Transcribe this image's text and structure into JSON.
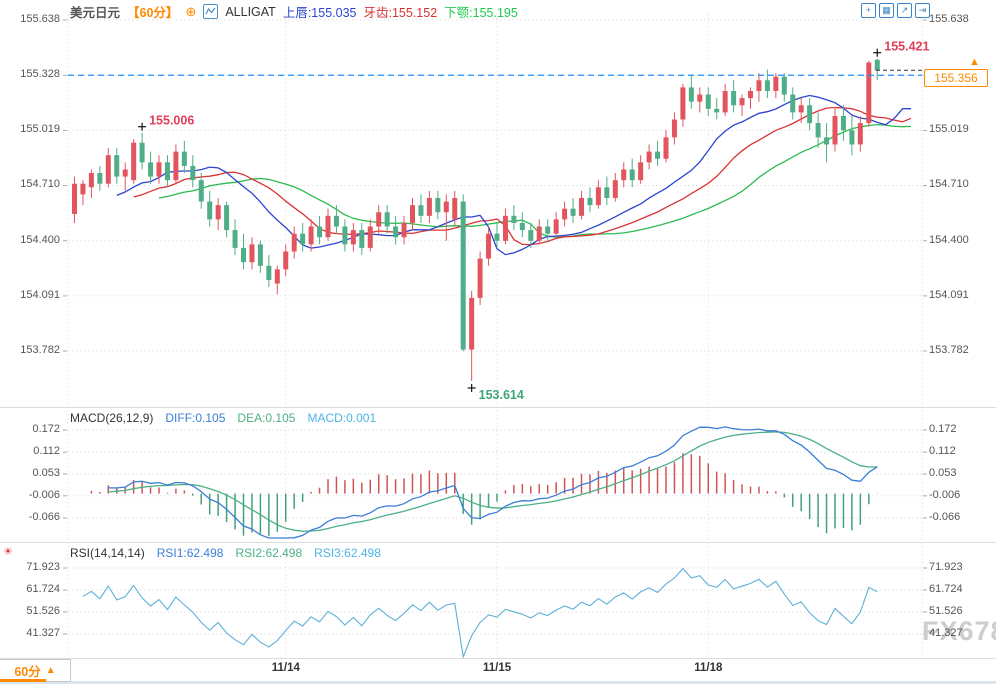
{
  "header": {
    "symbol": "美元日元",
    "timeframe": "【60分】",
    "plus_icon_glyph": "⊕",
    "indicator_name": "ALLIGAT",
    "lips_label": "上唇:155.035",
    "teeth_label": "牙齿:155.152",
    "jaw_label": "下颚:155.195",
    "toolbar_icons": [
      {
        "name": "pan-icon",
        "glyph": "+"
      },
      {
        "name": "grid-scale-icon",
        "glyph": "▦"
      },
      {
        "name": "trend-scale-icon",
        "glyph": "↗"
      },
      {
        "name": "exit-view-icon",
        "glyph": "⇥"
      }
    ]
  },
  "price_axis": {
    "ticks": [
      "155.638",
      "155.328",
      "155.019",
      "154.710",
      "154.400",
      "154.091",
      "153.782"
    ]
  },
  "macd_panel": {
    "title": "MACD(26,12,9)",
    "diff_label": "DIFF:0.105",
    "dea_label": "DEA:0.105",
    "macd_label": "MACD:0.001",
    "ticks": [
      "0.172",
      "0.112",
      "0.053",
      "-0.006",
      "-0.066"
    ]
  },
  "rsi_panel": {
    "title": "RSI(14,14,14)",
    "rsi1_label": "RSI1:62.498",
    "rsi2_label": "RSI2:62.498",
    "rsi3_label": "RSI3:62.498",
    "ticks": [
      "71.923",
      "61.724",
      "51.526",
      "41.327"
    ]
  },
  "x_axis": {
    "labels": [
      "11/14",
      "11/15",
      "11/18"
    ]
  },
  "footer": {
    "timeframe_label": "60分",
    "dropdown_glyph": "▲"
  },
  "current_price_tag": {
    "value": "155.356",
    "arrow_glyph": "▲"
  },
  "watermark": "FX678",
  "colors": {
    "candle_up": "#e2555e",
    "candle_down": "#4fae87",
    "alligator_lips": "#2c44cf",
    "alligator_teeth": "#da3333",
    "alligator_jaw": "#2cba50",
    "macd_diff": "#3b7ed8",
    "macd_dea": "#4cb084",
    "hist_up": "#cf5454",
    "hist_down": "#44a07a",
    "rsi_line": "#5fb0d8",
    "accent_orange": "#ff8a00",
    "dashed_blue": "#1f8fff",
    "marker_up": "#e0405a",
    "marker_down": "#3da678",
    "grid": "#e2e2e2"
  },
  "chart_data": {
    "type": "candlestick",
    "symbol": "USD/JPY",
    "timeframe_minutes": 60,
    "price_ticks": [
      155.638,
      155.328,
      155.019,
      154.71,
      154.4,
      154.091,
      153.782
    ],
    "macd_ticks": [
      0.172,
      0.112,
      0.053,
      -0.006,
      -0.066
    ],
    "rsi_ticks": [
      71.923,
      61.724,
      51.526,
      41.327
    ],
    "date_label_indices": [
      25,
      50,
      75
    ],
    "dashed_level": 155.328,
    "current_price": 155.356,
    "session_high": 155.421,
    "swing_high": 155.006,
    "session_low": 153.614,
    "candles": [
      [
        154.55,
        154.76,
        154.5,
        154.72
      ],
      [
        154.66,
        154.74,
        154.6,
        154.72
      ],
      [
        154.7,
        154.8,
        154.64,
        154.78
      ],
      [
        154.78,
        154.82,
        154.68,
        154.72
      ],
      [
        154.72,
        154.92,
        154.7,
        154.88
      ],
      [
        154.88,
        154.92,
        154.72,
        154.76
      ],
      [
        154.76,
        154.84,
        154.68,
        154.8
      ],
      [
        154.74,
        154.97,
        154.72,
        154.95
      ],
      [
        154.95,
        155.006,
        154.8,
        154.84
      ],
      [
        154.84,
        154.9,
        154.72,
        154.76
      ],
      [
        154.76,
        154.88,
        154.72,
        154.84
      ],
      [
        154.84,
        154.88,
        154.7,
        154.74
      ],
      [
        154.74,
        154.94,
        154.72,
        154.9
      ],
      [
        154.9,
        154.96,
        154.78,
        154.82
      ],
      [
        154.82,
        154.88,
        154.7,
        154.74
      ],
      [
        154.74,
        154.78,
        154.58,
        154.62
      ],
      [
        154.62,
        154.68,
        154.48,
        154.52
      ],
      [
        154.52,
        154.64,
        154.46,
        154.6
      ],
      [
        154.6,
        154.62,
        154.42,
        154.46
      ],
      [
        154.46,
        154.52,
        154.32,
        154.36
      ],
      [
        154.36,
        154.44,
        154.24,
        154.28
      ],
      [
        154.28,
        154.42,
        154.24,
        154.38
      ],
      [
        154.38,
        154.4,
        154.22,
        154.26
      ],
      [
        154.26,
        154.32,
        154.14,
        154.18
      ],
      [
        154.16,
        154.26,
        154.1,
        154.24
      ],
      [
        154.24,
        154.38,
        154.2,
        154.34
      ],
      [
        154.34,
        154.48,
        154.3,
        154.44
      ],
      [
        154.44,
        154.5,
        154.34,
        154.38
      ],
      [
        154.38,
        154.52,
        154.34,
        154.48
      ],
      [
        154.48,
        154.54,
        154.38,
        154.42
      ],
      [
        154.42,
        154.58,
        154.4,
        154.54
      ],
      [
        154.54,
        154.6,
        154.44,
        154.48
      ],
      [
        154.48,
        154.52,
        154.34,
        154.38
      ],
      [
        154.38,
        154.5,
        154.34,
        154.46
      ],
      [
        154.46,
        154.5,
        154.32,
        154.36
      ],
      [
        154.36,
        154.52,
        154.34,
        154.48
      ],
      [
        154.48,
        154.6,
        154.44,
        154.56
      ],
      [
        154.56,
        154.6,
        154.44,
        154.48
      ],
      [
        154.48,
        154.54,
        154.38,
        154.42
      ],
      [
        154.42,
        154.54,
        154.38,
        154.5
      ],
      [
        154.5,
        154.64,
        154.46,
        154.6
      ],
      [
        154.6,
        154.66,
        154.5,
        154.54
      ],
      [
        154.54,
        154.68,
        154.5,
        154.64
      ],
      [
        154.64,
        154.68,
        154.52,
        154.56
      ],
      [
        154.56,
        154.66,
        154.4,
        154.62
      ],
      [
        154.52,
        154.68,
        154.48,
        154.64
      ],
      [
        154.62,
        154.66,
        153.78,
        153.79
      ],
      [
        153.79,
        154.12,
        153.614,
        154.08
      ],
      [
        154.08,
        154.34,
        154.04,
        154.3
      ],
      [
        154.3,
        154.48,
        154.26,
        154.44
      ],
      [
        154.44,
        154.5,
        154.36,
        154.4
      ],
      [
        154.4,
        154.58,
        154.38,
        154.54
      ],
      [
        154.54,
        154.6,
        154.46,
        154.5
      ],
      [
        154.5,
        154.56,
        154.42,
        154.46
      ],
      [
        154.46,
        154.5,
        154.36,
        154.4
      ],
      [
        154.4,
        154.52,
        154.38,
        154.48
      ],
      [
        154.48,
        154.52,
        154.4,
        154.44
      ],
      [
        154.44,
        154.56,
        154.42,
        154.52
      ],
      [
        154.52,
        154.62,
        154.48,
        154.58
      ],
      [
        154.58,
        154.64,
        154.5,
        154.54
      ],
      [
        154.54,
        154.68,
        154.52,
        154.64
      ],
      [
        154.64,
        154.7,
        154.56,
        154.6
      ],
      [
        154.6,
        154.74,
        154.58,
        154.7
      ],
      [
        154.7,
        154.76,
        154.6,
        154.64
      ],
      [
        154.64,
        154.78,
        154.62,
        154.74
      ],
      [
        154.74,
        154.84,
        154.7,
        154.8
      ],
      [
        154.8,
        154.86,
        154.7,
        154.74
      ],
      [
        154.74,
        154.88,
        154.72,
        154.84
      ],
      [
        154.84,
        154.94,
        154.8,
        154.9
      ],
      [
        154.9,
        154.96,
        154.82,
        154.86
      ],
      [
        154.86,
        155.02,
        154.84,
        154.98
      ],
      [
        154.98,
        155.12,
        154.94,
        155.08
      ],
      [
        155.08,
        155.28,
        155.04,
        155.26
      ],
      [
        155.26,
        155.33,
        155.14,
        155.18
      ],
      [
        155.18,
        155.26,
        155.12,
        155.22
      ],
      [
        155.22,
        155.26,
        155.1,
        155.14
      ],
      [
        155.14,
        155.2,
        155.08,
        155.12
      ],
      [
        155.12,
        155.28,
        155.1,
        155.24
      ],
      [
        155.24,
        155.3,
        155.12,
        155.16
      ],
      [
        155.16,
        155.22,
        155.1,
        155.2
      ],
      [
        155.2,
        155.26,
        155.14,
        155.24
      ],
      [
        155.24,
        155.34,
        155.18,
        155.3
      ],
      [
        155.3,
        155.36,
        155.2,
        155.24
      ],
      [
        155.24,
        155.34,
        155.2,
        155.32
      ],
      [
        155.32,
        155.34,
        155.18,
        155.22
      ],
      [
        155.22,
        155.26,
        155.08,
        155.12
      ],
      [
        155.12,
        155.2,
        155.06,
        155.16
      ],
      [
        155.16,
        155.2,
        155.02,
        155.06
      ],
      [
        155.06,
        155.12,
        154.92,
        154.98
      ],
      [
        154.98,
        155.06,
        154.84,
        154.94
      ],
      [
        154.94,
        155.14,
        154.9,
        155.1
      ],
      [
        155.1,
        155.16,
        154.96,
        155.02
      ],
      [
        155.02,
        155.1,
        154.88,
        154.94
      ],
      [
        154.94,
        155.1,
        154.9,
        155.06
      ],
      [
        155.06,
        155.41,
        155.04,
        155.4
      ],
      [
        155.415,
        155.421,
        155.3,
        155.356
      ]
    ],
    "markers": [
      {
        "index": 8,
        "price": 155.006,
        "label": "155.006",
        "side": "above",
        "color": "#e0405a"
      },
      {
        "index": 47,
        "price": 153.614,
        "label": "153.614",
        "side": "below",
        "color": "#3da678"
      },
      {
        "index": 95,
        "price": 155.421,
        "label": "155.421",
        "side": "above",
        "color": "#e0405a"
      }
    ],
    "indicators": {
      "alligator": {
        "lips": {
          "period": 5,
          "shift": 3,
          "value": 155.035
        },
        "teeth": {
          "period": 8,
          "shift": 5,
          "value": 155.152
        },
        "jaw": {
          "period": 13,
          "shift": 8,
          "value": 155.195
        }
      },
      "macd": {
        "fast": 12,
        "slow": 26,
        "signal": 9,
        "diff": 0.105,
        "dea": 0.105,
        "macd": 0.001
      },
      "rsi": {
        "periods": [
          14,
          14,
          14
        ],
        "values": [
          62.498,
          62.498,
          62.498
        ]
      }
    }
  }
}
